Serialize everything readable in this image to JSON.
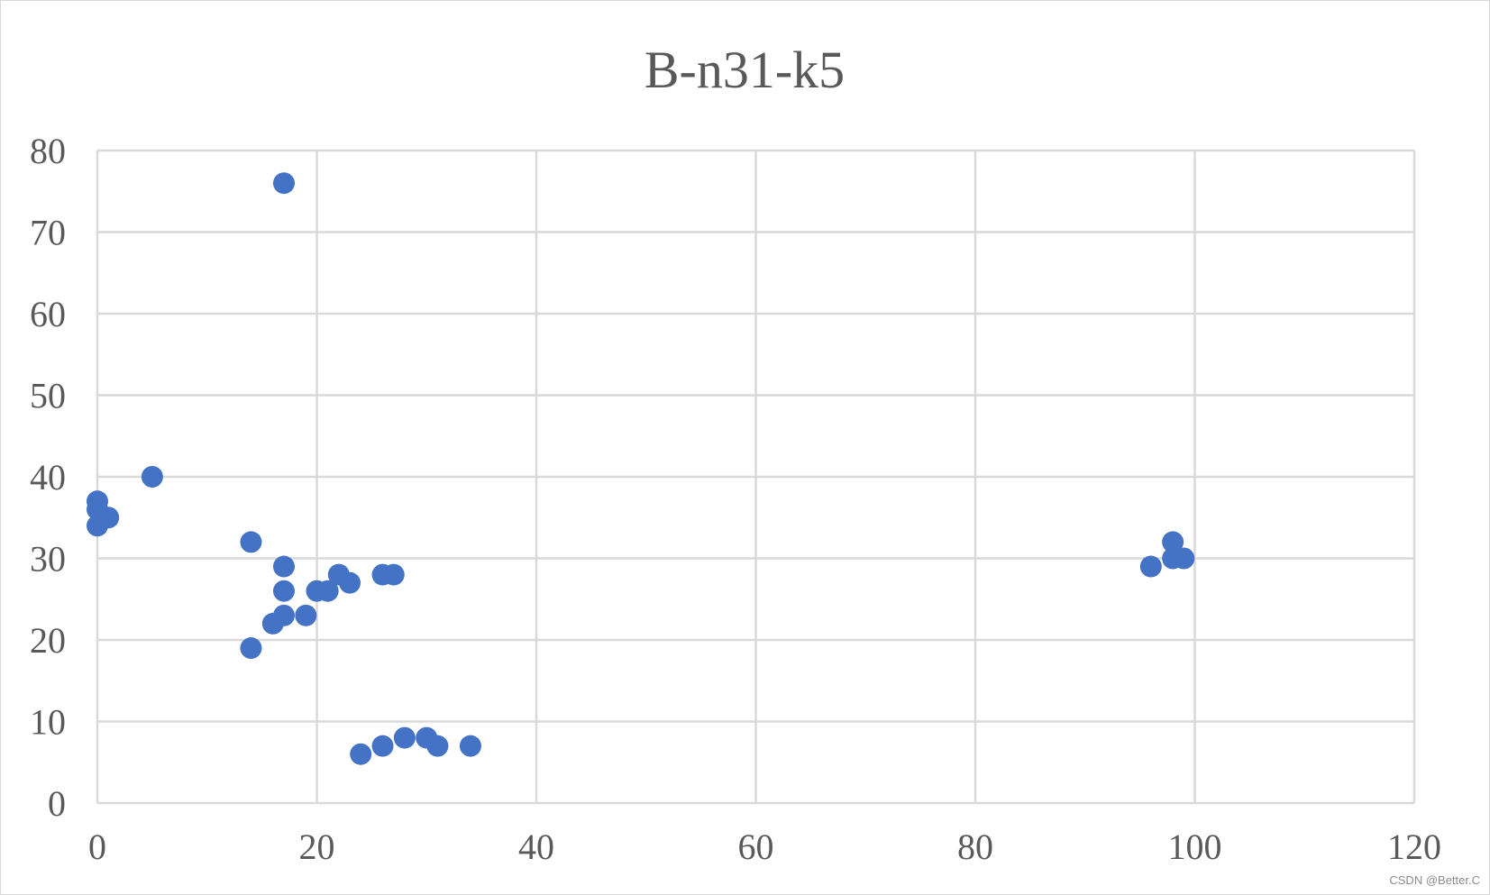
{
  "chart_data": {
    "type": "scatter",
    "title": "B-n31-k5",
    "xlabel": "",
    "ylabel": "",
    "xlim": [
      0,
      120
    ],
    "ylim": [
      0,
      80
    ],
    "x_ticks": [
      0,
      20,
      40,
      60,
      80,
      100,
      120
    ],
    "y_ticks": [
      0,
      10,
      20,
      30,
      40,
      50,
      60,
      70,
      80
    ],
    "grid": true,
    "legend": "none",
    "marker_color": "#4472c4",
    "series": [
      {
        "points": [
          {
            "x": 17,
            "y": 76
          },
          {
            "x": 5,
            "y": 40
          },
          {
            "x": 0,
            "y": 37
          },
          {
            "x": 0,
            "y": 36
          },
          {
            "x": 1,
            "y": 35
          },
          {
            "x": 0,
            "y": 34
          },
          {
            "x": 14,
            "y": 32
          },
          {
            "x": 17,
            "y": 29
          },
          {
            "x": 17,
            "y": 26
          },
          {
            "x": 17,
            "y": 23
          },
          {
            "x": 16,
            "y": 22
          },
          {
            "x": 14,
            "y": 19
          },
          {
            "x": 19,
            "y": 23
          },
          {
            "x": 20,
            "y": 26
          },
          {
            "x": 21,
            "y": 26
          },
          {
            "x": 22,
            "y": 28
          },
          {
            "x": 23,
            "y": 27
          },
          {
            "x": 26,
            "y": 28
          },
          {
            "x": 27,
            "y": 28
          },
          {
            "x": 24,
            "y": 6
          },
          {
            "x": 26,
            "y": 7
          },
          {
            "x": 28,
            "y": 8
          },
          {
            "x": 30,
            "y": 8
          },
          {
            "x": 31,
            "y": 7
          },
          {
            "x": 34,
            "y": 7
          },
          {
            "x": 96,
            "y": 29
          },
          {
            "x": 98,
            "y": 32
          },
          {
            "x": 98,
            "y": 30
          },
          {
            "x": 99,
            "y": 30
          }
        ]
      }
    ]
  },
  "watermark": "CSDN @Better.C"
}
